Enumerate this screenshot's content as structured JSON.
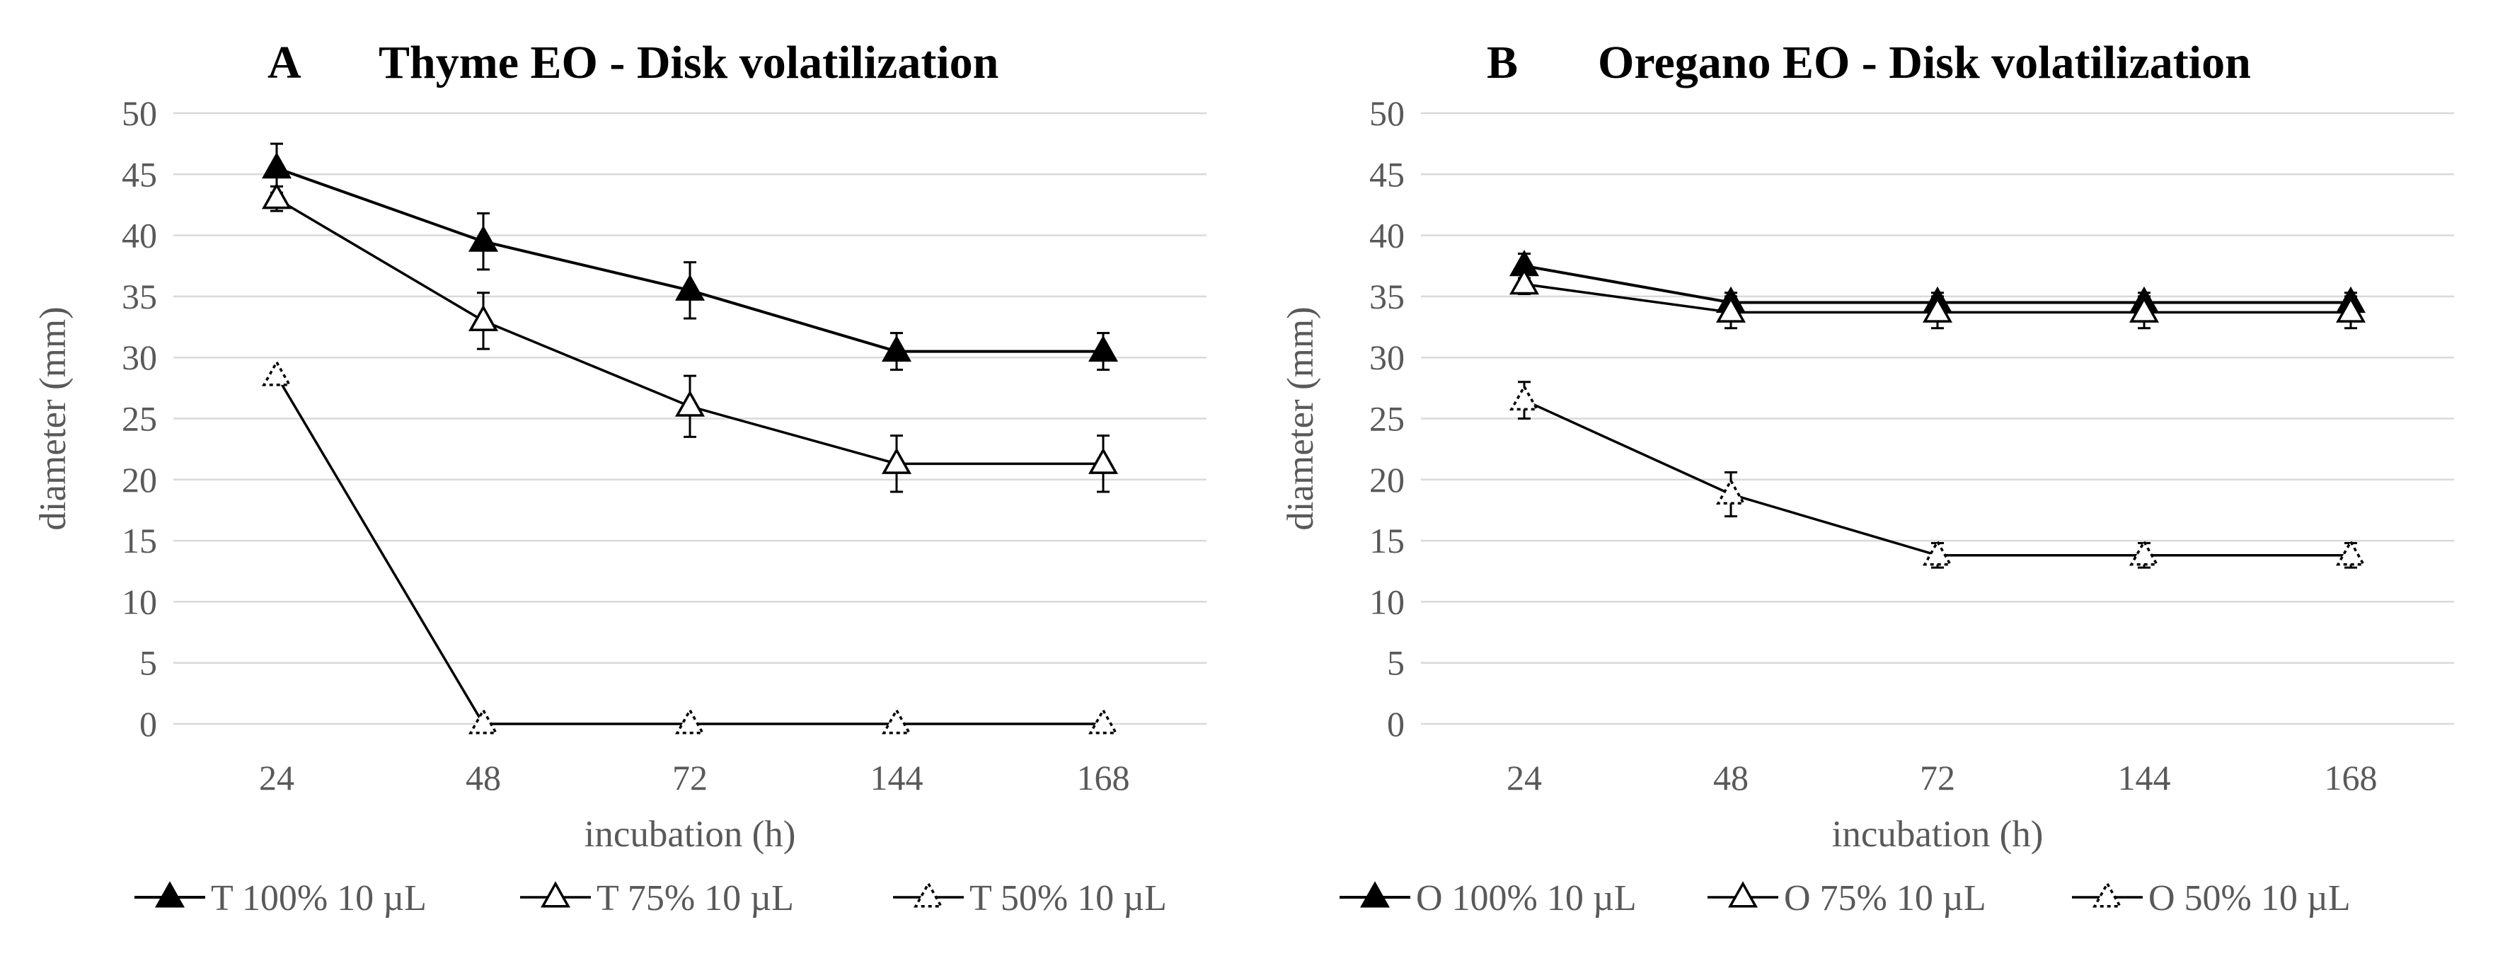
{
  "chart_data": [
    {
      "type": "line",
      "panel_letter": "A",
      "title": "Thyme EO - Disk volatilization",
      "xlabel": "incubation (h)",
      "ylabel": "diameter (mm)",
      "categories": [
        "24",
        "48",
        "72",
        "144",
        "168"
      ],
      "ylim": [
        0,
        50
      ],
      "yticks": [
        0,
        5,
        10,
        15,
        20,
        25,
        30,
        35,
        40,
        45,
        50
      ],
      "grid": true,
      "legend_position": "bottom",
      "series": [
        {
          "name": "T 100% 10 µL",
          "marker": "filled-triangle",
          "values": [
            45.5,
            39.5,
            35.5,
            30.5,
            30.5
          ],
          "errors": [
            2,
            2.3,
            2.3,
            1.5,
            1.5
          ]
        },
        {
          "name": "T 75% 10 µL",
          "marker": "open-triangle",
          "values": [
            43,
            33,
            26,
            21.3,
            21.3
          ],
          "errors": [
            1,
            2.3,
            2.5,
            2.3,
            2.3
          ]
        },
        {
          "name": "T 50% 10 µL",
          "marker": "dotted-triangle",
          "values": [
            28.5,
            0,
            0,
            0,
            0
          ],
          "errors": [
            0,
            0,
            0,
            0,
            0
          ]
        }
      ]
    },
    {
      "type": "line",
      "panel_letter": "B",
      "title": "Oregano EO - Disk volatilization",
      "xlabel": "incubation (h)",
      "ylabel": "diameter (mm)",
      "categories": [
        "24",
        "48",
        "72",
        "144",
        "168"
      ],
      "ylim": [
        0,
        50
      ],
      "yticks": [
        0,
        5,
        10,
        15,
        20,
        25,
        30,
        35,
        40,
        45,
        50
      ],
      "grid": true,
      "legend_position": "bottom",
      "series": [
        {
          "name": "O 100% 10 µL",
          "marker": "filled-triangle",
          "values": [
            37.5,
            34.5,
            34.5,
            34.5,
            34.5
          ],
          "errors": [
            1,
            0.8,
            0.8,
            0.8,
            0.8
          ]
        },
        {
          "name": "O 75% 10 µL",
          "marker": "open-triangle",
          "values": [
            36,
            33.7,
            33.7,
            33.7,
            33.7
          ],
          "errors": [
            0.8,
            1.3,
            1.3,
            1.3,
            1.3
          ]
        },
        {
          "name": "O 50% 10 µL",
          "marker": "dotted-triangle",
          "values": [
            26.5,
            18.8,
            13.8,
            13.8,
            13.8
          ],
          "errors": [
            1.5,
            1.8,
            1,
            1,
            1
          ]
        }
      ]
    }
  ]
}
